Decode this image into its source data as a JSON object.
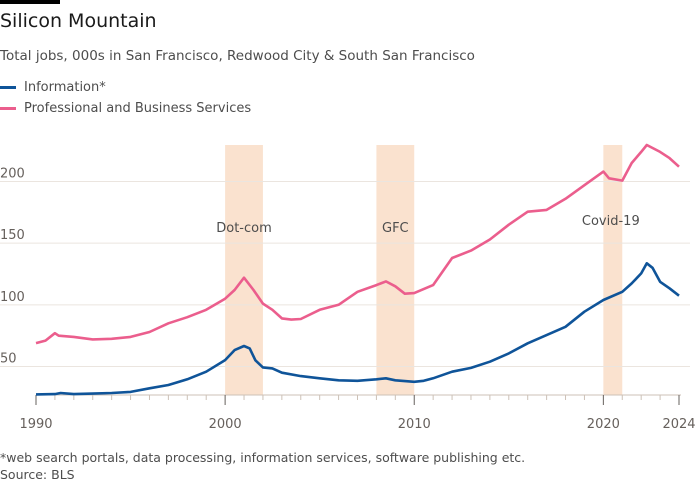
{
  "chart_data": {
    "type": "line",
    "title": "Silicon Mountain",
    "subtitle": "Total jobs, 000s in San Francisco, Redwood City & South San Francisco",
    "xlabel": "",
    "ylabel": "",
    "xlim": [
      1990,
      2024
    ],
    "ylim": [
      27,
      230
    ],
    "x_ticks": [
      1990,
      2000,
      2010,
      2020,
      2024
    ],
    "x_tick_labels": [
      "1990",
      "2000",
      "2010",
      "2020",
      "2024"
    ],
    "y_ticks": [
      50,
      100,
      150,
      200
    ],
    "y_tick_labels": [
      "50",
      "100",
      "150",
      "200"
    ],
    "grid": true,
    "legend": "top-left",
    "shaded_periods": [
      {
        "label": "Dot-com",
        "start": 2000,
        "end": 2002
      },
      {
        "label": "GFC",
        "start": 2008,
        "end": 2010
      },
      {
        "label": "Covid-19",
        "start": 2020,
        "end": 2021
      }
    ],
    "series": [
      {
        "name": "Information*",
        "color": "#0f5499",
        "x": [
          1990,
          1991,
          1991.3,
          1992,
          1993,
          1994,
          1995,
          1996,
          1997,
          1998,
          1999,
          2000,
          2000.5,
          2001,
          2001.3,
          2001.6,
          2002,
          2002.5,
          2003,
          2004,
          2005,
          2006,
          2007,
          2008,
          2008.5,
          2009,
          2010,
          2010.5,
          2011,
          2012,
          2013,
          2014,
          2015,
          2016,
          2017,
          2018,
          2019,
          2020,
          2021,
          2021.5,
          2022,
          2022.3,
          2022.6,
          2023,
          2023.5,
          2024
        ],
        "values": [
          27.4,
          27.6,
          28.5,
          27.6,
          28,
          28.5,
          29.4,
          32.3,
          35,
          39.6,
          45.8,
          55.2,
          63.3,
          66.6,
          64.7,
          55,
          49.3,
          48.5,
          45,
          42.2,
          40.4,
          38.8,
          38.4,
          39.6,
          40.4,
          38.8,
          37.6,
          38.4,
          40.4,
          45.8,
          48.9,
          53.9,
          60.6,
          68.8,
          75.5,
          82.2,
          94.4,
          103.9,
          110.6,
          117.4,
          125.5,
          133.7,
          130,
          118.7,
          113.4,
          107.4
        ]
      },
      {
        "name": "Professional and Business Services",
        "color": "#eb5e8d",
        "x": [
          1990,
          1990.5,
          1991,
          1991.2,
          1992,
          1993,
          1994,
          1995,
          1996,
          1997,
          1998,
          1999,
          2000,
          2000.5,
          2001,
          2001.5,
          2002,
          2002.5,
          2003,
          2003.5,
          2004,
          2005,
          2006,
          2007,
          2008,
          2008.5,
          2009,
          2009.5,
          2010,
          2011,
          2012,
          2013,
          2014,
          2015,
          2016,
          2017,
          2018,
          2019,
          2020,
          2020.3,
          2021,
          2021.5,
          2022,
          2022.3,
          2023,
          2023.5,
          2024
        ],
        "values": [
          69,
          71,
          77,
          75,
          74,
          72,
          72.5,
          74,
          78,
          85,
          90,
          96,
          105,
          112,
          122,
          112,
          101,
          96,
          89,
          88,
          88.5,
          96,
          100,
          110.6,
          116,
          119,
          115,
          109,
          109.5,
          116,
          138,
          144,
          153,
          165,
          175.5,
          177,
          186,
          197,
          208,
          202.6,
          200.7,
          215,
          224,
          229.6,
          224,
          219,
          212
        ]
      }
    ],
    "footnote": "*web search portals, data processing, information services, software publishing etc.",
    "source": "Source: BLS",
    "shade_color": "#fae2cf"
  }
}
